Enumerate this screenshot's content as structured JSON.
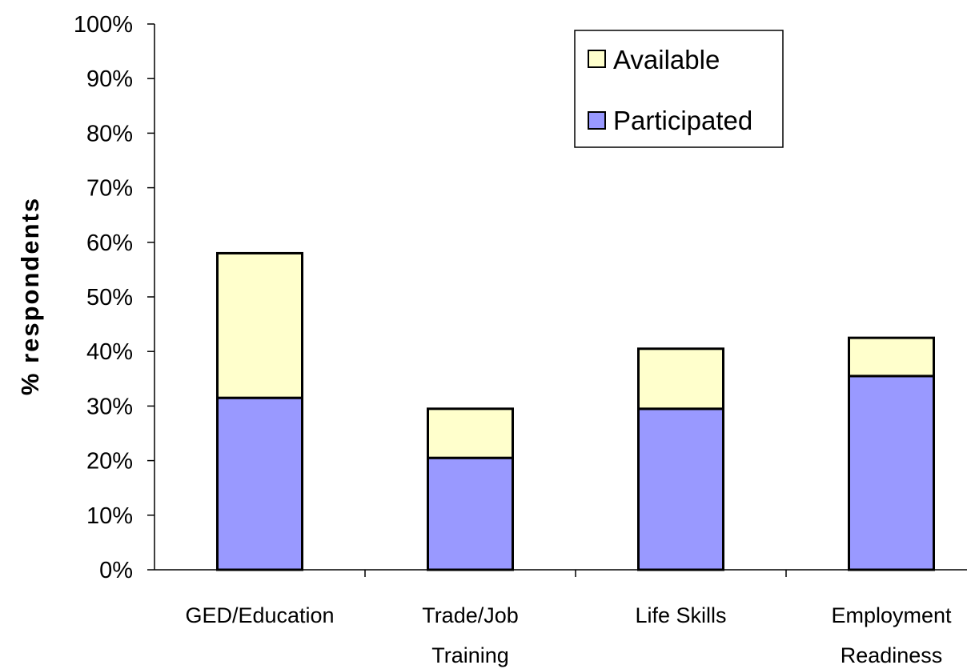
{
  "chart_data": {
    "type": "bar",
    "stacked": true,
    "categories": [
      [
        "GED/Education"
      ],
      [
        "Trade/Job",
        "Training"
      ],
      [
        "Life Skills"
      ],
      [
        "Employment",
        "Readiness"
      ]
    ],
    "series": [
      {
        "name": "Participated",
        "values": [
          31.5,
          20.5,
          29.5,
          35.5
        ],
        "color": "#9999ff"
      },
      {
        "name": "Available",
        "values": [
          26.5,
          9.0,
          11.0,
          7.0
        ],
        "color": "#ffffcc"
      }
    ],
    "ylabel": "% respondents",
    "ylim": [
      0,
      100
    ],
    "yticks": [
      "0%",
      "10%",
      "20%",
      "30%",
      "40%",
      "50%",
      "60%",
      "70%",
      "80%",
      "90%",
      "100%"
    ],
    "legend": {
      "placement": "top-right",
      "entries": [
        "Available",
        "Participated"
      ]
    },
    "grid": false
  }
}
